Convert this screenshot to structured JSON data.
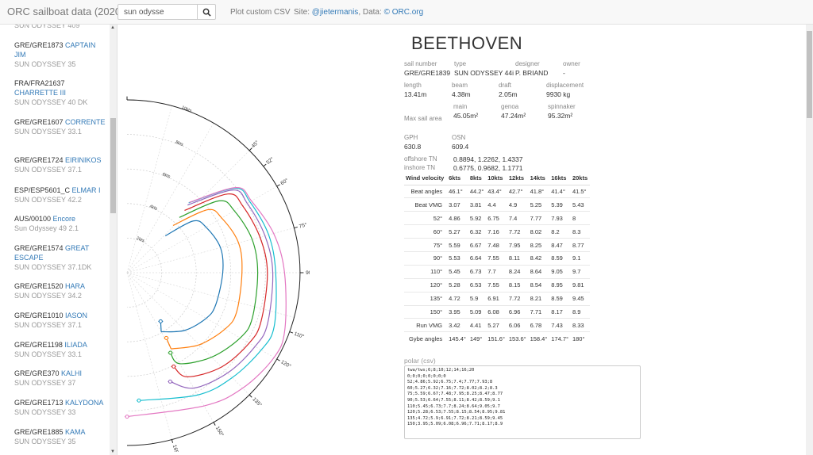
{
  "navbar": {
    "brand": "ORC sailboat data (2020)",
    "search_value": "sun odysse",
    "search_icon": "search-icon",
    "plot_link": "Plot custom CSV",
    "site_prefix": "Site: ",
    "site_link": "@jieter­manis",
    "data_prefix": ", Data: ",
    "data_link": "© ORC.org"
  },
  "sidebar": {
    "items": [
      {
        "id": "",
        "name": "",
        "type": "SUN ODYSSEY 409"
      },
      {
        "id": "GRE/GRE1873 ",
        "name": "CAPTAIN JIM",
        "type": "SUN ODYSSEY 35"
      },
      {
        "id": "FRA/FRA21637 ",
        "name": "CHARRETTE III",
        "type": "SUN ODYSSEY 40 DK"
      },
      {
        "id": "GRE/GRE1607 ",
        "name": "CORRENTE",
        "type": "SUN ODYSSEY 33.1"
      },
      {
        "id": "GRE/GRE1724 ",
        "name": "EIRINIKOS",
        "type": "SUN ODYSSEY 37.1"
      },
      {
        "id": "ESP/ESP5601_C ",
        "name": "ELMAR I",
        "type": "SUN ODYSSEY 42.2"
      },
      {
        "id": "AUS/00100 ",
        "name": "Encore",
        "type": "Sun Odyssey 49 2.1"
      },
      {
        "id": "GRE/GRE1574 ",
        "name": "GREAT ESCAPE",
        "type": "SUN ODYSSEY 37.1DK"
      },
      {
        "id": "GRE/GRE1520 ",
        "name": "HARA",
        "type": "SUN ODYSSEY 34.2"
      },
      {
        "id": "GRE/GRE1010 ",
        "name": "IASON",
        "type": "SUN ODYSSEY 37.1"
      },
      {
        "id": "GRE/GRE1198 ",
        "name": "ILIADA",
        "type": "SUN ODYSSEY 33.1"
      },
      {
        "id": "GRE/GRE370 ",
        "name": "KALHI",
        "type": "SUN ODYSSEY 37"
      },
      {
        "id": "GRE/GRE1713 ",
        "name": "KALYDONA",
        "type": "SUN ODYSSEY 33"
      },
      {
        "id": "GRE/GRE1885 ",
        "name": "KAMA",
        "type": "SUN ODYSSEY 35"
      }
    ]
  },
  "boat": {
    "name": "BEETHOVEN",
    "sail_number_label": "sail number",
    "sail_number": "GRE/GRE1839",
    "type_label": "type",
    "type": "SUN ODYSSEY 44i",
    "designer_label": "designer",
    "designer": "P. BRIAND",
    "owner_label": "owner",
    "owner": "-",
    "length_label": "length",
    "length": "13.41m",
    "beam_label": "beam",
    "beam": "4.38m",
    "draft_label": "draft",
    "draft": "2.05m",
    "displacement_label": "displacement",
    "displacement": "9930 kg",
    "max_sail_label": "Max sail area",
    "main_label": "main",
    "main": "45.05m²",
    "genoa_label": "genoa",
    "genoa": "47.24m²",
    "spinnaker_label": "spinnaker",
    "spinnaker": "95.32m²",
    "gph_label": "GPH",
    "gph": "630.8",
    "osn_label": "OSN",
    "osn": "609.4",
    "offshore_label": "offshore TN",
    "offshore": "0.8894, 1.2262, 1.4337",
    "inshore_label": "inshore TN",
    "inshore": "0.6775, 0.9682, 1.1771"
  },
  "table": {
    "header": [
      "Wind velocity",
      "6kts",
      "8kts",
      "10kts",
      "12kts",
      "14kts",
      "16kts",
      "20kts"
    ],
    "rows": [
      [
        "Beat angles",
        "46.1°",
        "44.2°",
        "43.4°",
        "42.7°",
        "41.8°",
        "41.4°",
        "41.5°"
      ],
      [
        "Beat VMG",
        "3.07",
        "3.81",
        "4.4",
        "4.9",
        "5.25",
        "5.39",
        "5.43"
      ],
      [
        "52°",
        "4.86",
        "5.92",
        "6.75",
        "7.4",
        "7.77",
        "7.93",
        "8"
      ],
      [
        "60°",
        "5.27",
        "6.32",
        "7.16",
        "7.72",
        "8.02",
        "8.2",
        "8.3"
      ],
      [
        "75°",
        "5.59",
        "6.67",
        "7.48",
        "7.95",
        "8.25",
        "8.47",
        "8.77"
      ],
      [
        "90°",
        "5.53",
        "6.64",
        "7.55",
        "8.11",
        "8.42",
        "8.59",
        "9.1"
      ],
      [
        "110°",
        "5.45",
        "6.73",
        "7.7",
        "8.24",
        "8.64",
        "9.05",
        "9.7"
      ],
      [
        "120°",
        "5.28",
        "6.53",
        "7.55",
        "8.15",
        "8.54",
        "8.95",
        "9.81"
      ],
      [
        "135°",
        "4.72",
        "5.9",
        "6.91",
        "7.72",
        "8.21",
        "8.59",
        "9.45"
      ],
      [
        "150°",
        "3.95",
        "5.09",
        "6.08",
        "6.96",
        "7.71",
        "8.17",
        "8.9"
      ],
      [
        "Run VMG",
        "3.42",
        "4.41",
        "5.27",
        "6.06",
        "6.78",
        "7.43",
        "8.33"
      ],
      [
        "Gybe angles",
        "145.4°",
        "149°",
        "151.6°",
        "153.6°",
        "158.4°",
        "174.7°",
        "180°"
      ]
    ]
  },
  "polar": {
    "label": "polar (csv)",
    "csv": "twa/tws;6;8;10;12;14;16;20\n0;0;0;0;0;0;0;0\n52;4.86;5.92;6.75;7.4;7.77;7.93;8\n60;5.27;6.32;7.16;7.72;8.02;8.2;8.3\n75;5.59;6.67;7.48;7.95;8.25;8.47;8.77\n90;5.53;6.64;7.55;8.11;8.42;8.59;9.1\n110;5.45;6.73;7.7;8.24;8.64;9.05;9.7\n120;5.28;6.53;7.55;8.15;8.54;8.95;9.81\n135;4.72;5.9;6.91;7.72;8.21;8.59;9.45\n150;3.95;5.09;6.08;6.96;7.71;8.17;8.9"
  },
  "chart_data": {
    "type": "line",
    "subtype": "polar",
    "angle_ticks": [
      "0",
      "45°",
      "52°",
      "60°",
      "75°",
      "90°",
      "110°",
      "120°",
      "135°",
      "150°",
      "165°"
    ],
    "radius_ticks": [
      "2kts",
      "4kts",
      "6kts",
      "8kts",
      "10kts"
    ],
    "rmax": 10,
    "angles": [
      52,
      60,
      75,
      90,
      110,
      120,
      135,
      150
    ],
    "series": [
      {
        "tws": 6,
        "color": "#1f77b4",
        "beat": [
          46.1,
          3.07
        ],
        "run": [
          145.4,
          3.42
        ],
        "values": [
          4.86,
          5.27,
          5.59,
          5.53,
          5.45,
          5.28,
          4.72,
          3.95
        ]
      },
      {
        "tws": 8,
        "color": "#ff7f0e",
        "beat": [
          44.2,
          3.81
        ],
        "run": [
          149,
          4.41
        ],
        "values": [
          5.92,
          6.32,
          6.67,
          6.64,
          6.73,
          6.53,
          5.9,
          5.09
        ]
      },
      {
        "tws": 10,
        "color": "#2ca02c",
        "beat": [
          43.4,
          4.4
        ],
        "run": [
          151.6,
          5.27
        ],
        "values": [
          6.75,
          7.16,
          7.48,
          7.55,
          7.7,
          7.55,
          6.91,
          6.08
        ]
      },
      {
        "tws": 12,
        "color": "#d62728",
        "beat": [
          42.7,
          4.9
        ],
        "run": [
          153.6,
          6.06
        ],
        "values": [
          7.4,
          7.72,
          7.95,
          8.11,
          8.24,
          8.15,
          7.72,
          6.96
        ]
      },
      {
        "tws": 14,
        "color": "#9467bd",
        "beat": [
          41.8,
          5.25
        ],
        "run": [
          158.4,
          6.78
        ],
        "values": [
          7.77,
          8.02,
          8.25,
          8.42,
          8.64,
          8.54,
          8.21,
          7.71
        ]
      },
      {
        "tws": 16,
        "color": "#17becf",
        "beat": [
          41.4,
          5.39
        ],
        "run": [
          174.7,
          7.43
        ],
        "values": [
          7.93,
          8.2,
          8.47,
          8.59,
          9.05,
          8.95,
          8.59,
          8.17
        ]
      },
      {
        "tws": 20,
        "color": "#e377c2",
        "beat": [
          41.5,
          5.43
        ],
        "run": [
          180,
          8.33
        ],
        "values": [
          8,
          8.3,
          8.77,
          9.1,
          9.7,
          9.81,
          9.45,
          8.9
        ]
      }
    ]
  }
}
